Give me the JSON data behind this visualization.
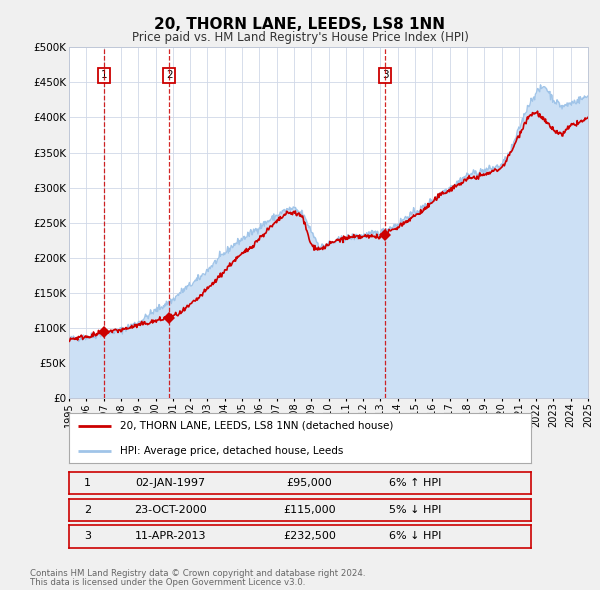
{
  "title": "20, THORN LANE, LEEDS, LS8 1NN",
  "subtitle": "Price paid vs. HM Land Registry's House Price Index (HPI)",
  "title_fontsize": 11,
  "subtitle_fontsize": 8.5,
  "background_color": "#f0f0f0",
  "plot_bg_color": "#ffffff",
  "sale_color": "#cc0000",
  "hpi_color": "#a0c4e8",
  "hpi_fill_color": "#cce0f5",
  "sales": [
    {
      "date": "1997-01-02",
      "price": 95000,
      "label": "1"
    },
    {
      "date": "2000-10-23",
      "price": 115000,
      "label": "2"
    },
    {
      "date": "2013-04-11",
      "price": 232500,
      "label": "3"
    }
  ],
  "annotations": [
    {
      "num": "1",
      "date": "02-JAN-1997",
      "price": "£95,000",
      "note": "6% ↑ HPI"
    },
    {
      "num": "2",
      "date": "23-OCT-2000",
      "price": "£115,000",
      "note": "5% ↓ HPI"
    },
    {
      "num": "3",
      "date": "11-APR-2013",
      "price": "£232,500",
      "note": "6% ↓ HPI"
    }
  ],
  "legend_sale_label": "20, THORN LANE, LEEDS, LS8 1NN (detached house)",
  "legend_hpi_label": "HPI: Average price, detached house, Leeds",
  "footer1": "Contains HM Land Registry data © Crown copyright and database right 2024.",
  "footer2": "This data is licensed under the Open Government Licence v3.0.",
  "ylim": [
    0,
    500000
  ],
  "yticks": [
    0,
    50000,
    100000,
    150000,
    200000,
    250000,
    300000,
    350000,
    400000,
    450000,
    500000
  ],
  "ytick_labels": [
    "£0",
    "£50K",
    "£100K",
    "£150K",
    "£200K",
    "£250K",
    "£300K",
    "£350K",
    "£400K",
    "£450K",
    "£500K"
  ],
  "sale_dates_yr": [
    1997.01,
    2000.8,
    2013.28
  ],
  "sale_prices": [
    95000,
    115000,
    232500
  ],
  "sale_labels": [
    "1",
    "2",
    "3"
  ]
}
